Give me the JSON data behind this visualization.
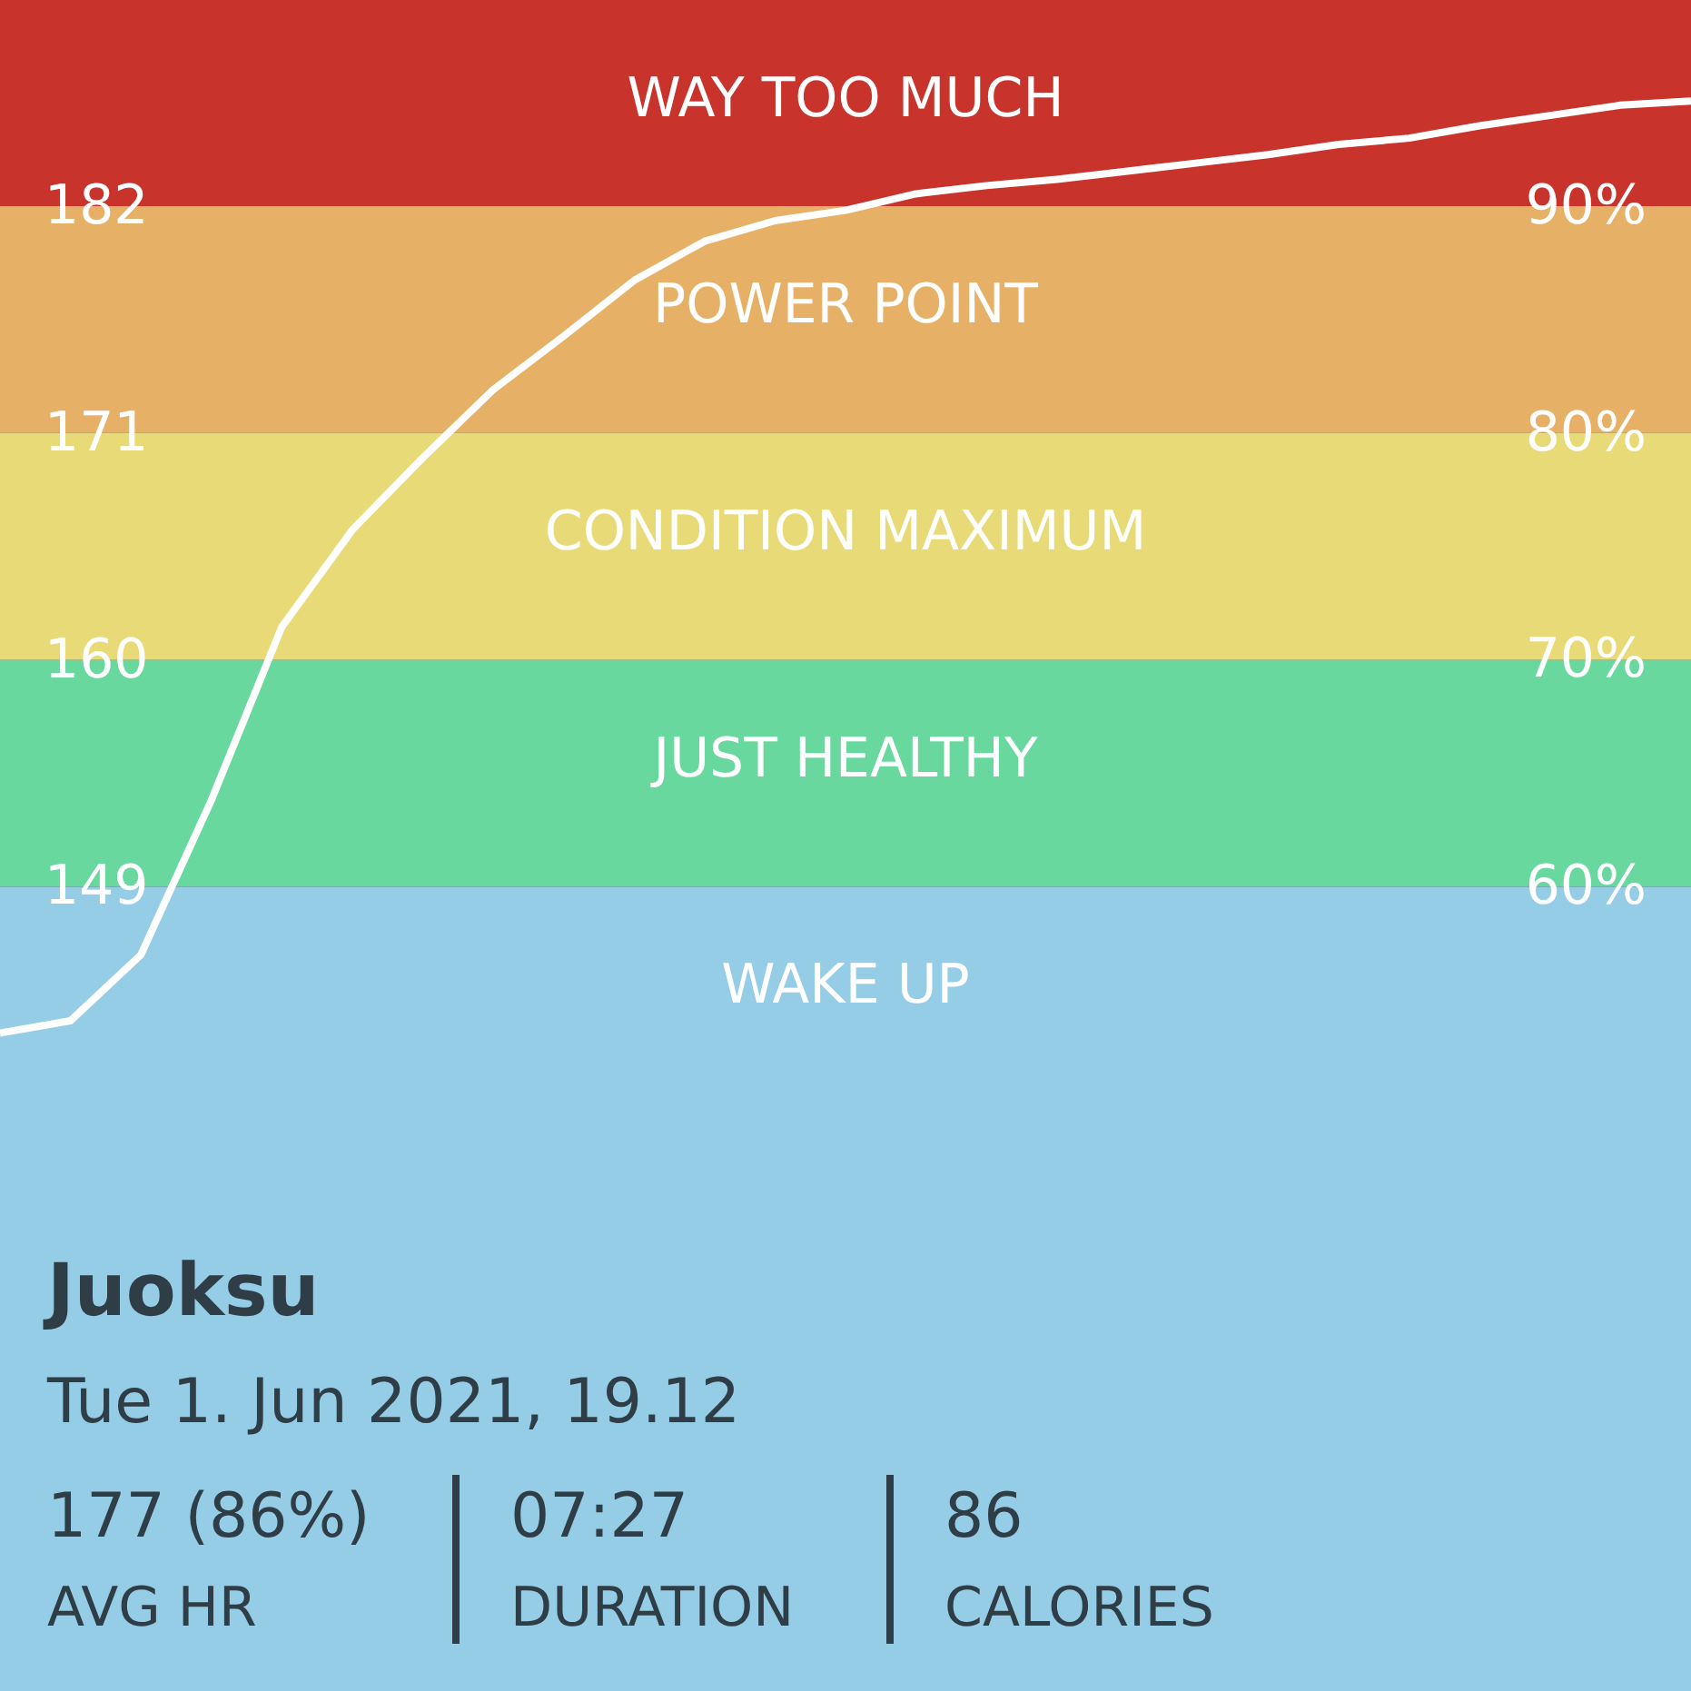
{
  "chart_data": {
    "type": "line",
    "categories": [
      null,
      null,
      null,
      null,
      null,
      null,
      null,
      null,
      null,
      null,
      null,
      null,
      null,
      null,
      null,
      null,
      null,
      null,
      null,
      null,
      null,
      null,
      null,
      null,
      null
    ],
    "series": [
      {
        "color": "#ffffff",
        "values": [
          141.9,
          142.5,
          145.7,
          153.2,
          161.6,
          166.3,
          169.8,
          173.1,
          175.7,
          178.4,
          180.3,
          181.3,
          181.8,
          182.6,
          183.0,
          183.3,
          183.7,
          184.1,
          184.5,
          185.0,
          185.3,
          185.9,
          186.4,
          186.9,
          187.1
        ]
      }
    ],
    "ylim": [
      110,
      192
    ],
    "yticks": [
      149,
      160,
      171,
      182
    ],
    "y2lim": [
      24.5,
      99.1
    ],
    "y2ticks": [
      {
        "value": 60,
        "label": "60%"
      },
      {
        "value": 70,
        "label": "70%"
      },
      {
        "value": 80,
        "label": "80%"
      },
      {
        "value": 90,
        "label": "90%"
      }
    ],
    "bands": [
      {
        "axis": "y",
        "from": 182,
        "to": 192,
        "label": "WAY TOO MUCH",
        "color": "#c8342c"
      },
      {
        "axis": "y",
        "from": 171,
        "to": 182,
        "label": "POWER POINT",
        "color": "#e6b067"
      },
      {
        "axis": "y",
        "from": 160,
        "to": 171,
        "label": "CONDITION MAXIMUM",
        "color": "#e8da76"
      },
      {
        "axis": "y",
        "from": 149,
        "to": 160,
        "label": "JUST HEALTHY",
        "color": "#69d89f"
      },
      {
        "axis": "y",
        "from": 110,
        "to": 149,
        "label": "WAKE UP",
        "color": "#95cce6"
      }
    ],
    "annotations": [
      "Juoksu",
      "Tue 1. Jun 2021, 19.12",
      "177 (86%)",
      "AVG HR",
      "07:27",
      "DURATION",
      "86",
      "CALORIES"
    ],
    "grid": false,
    "marker": "none",
    "line_style": "solid"
  }
}
